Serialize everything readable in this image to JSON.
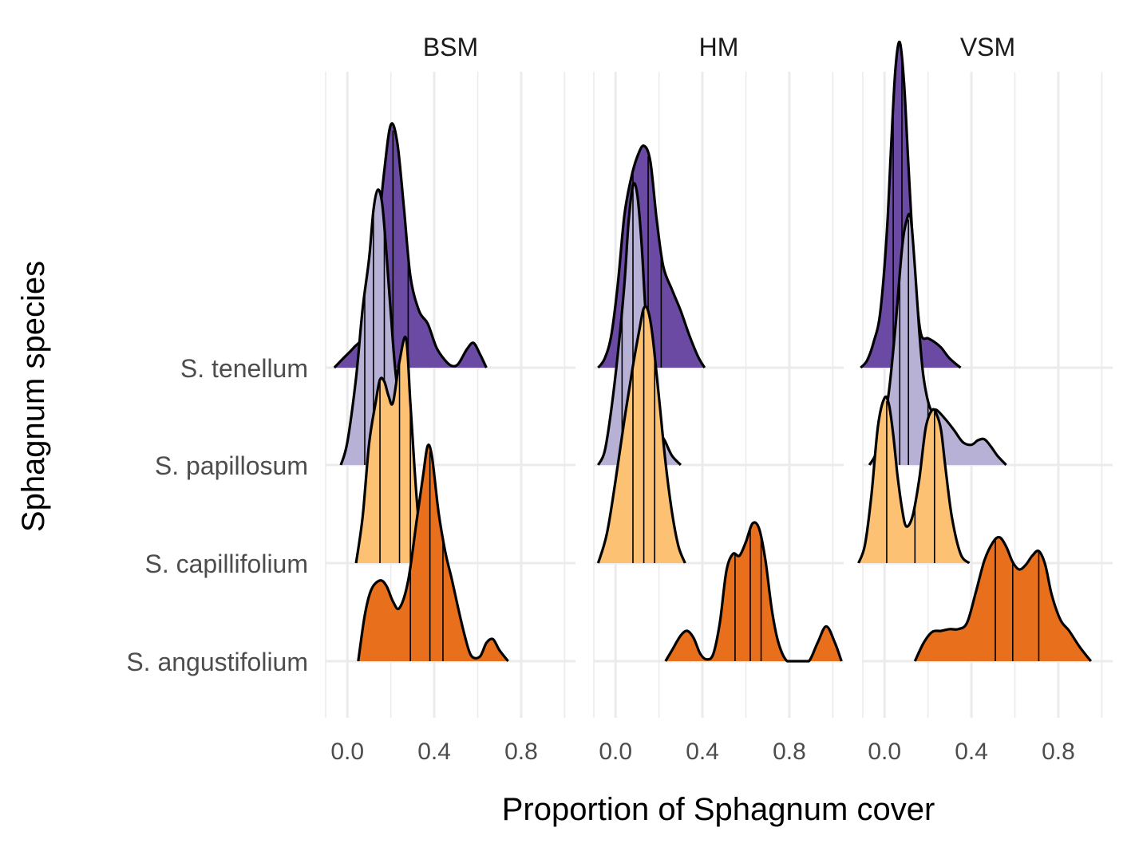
{
  "chart_data": {
    "type": "ridgeline",
    "xlabel": "Proportion of Sphagnum cover",
    "ylabel": "Sphagnum species",
    "xlim": [
      -0.1,
      1.05
    ],
    "xticks": [
      "0.0",
      "0.4",
      "0.8"
    ],
    "xtick_values": [
      0.0,
      0.4,
      0.8
    ],
    "grid": true,
    "quantile_lines": true,
    "colors": {
      "S. tenellum": "#6a4aa2",
      "S. papillosum": "#b8b1d6",
      "S. capillifolium": "#fdc173",
      "S. angustifolium": "#e8701c"
    },
    "species": [
      "S. tenellum",
      "S. papillosum",
      "S. capillifolium",
      "S. angustifolium"
    ],
    "panels": [
      {
        "facet": "BSM",
        "series": [
          {
            "name": "S. tenellum",
            "x": [
              -0.06,
              -0.02,
              0.03,
              0.08,
              0.11,
              0.14,
              0.17,
              0.2,
              0.23,
              0.26,
              0.29,
              0.33,
              0.37,
              0.41,
              0.45,
              0.48,
              0.51,
              0.55,
              0.58,
              0.61,
              0.64
            ],
            "y": [
              0.0,
              0.1,
              0.22,
              0.38,
              0.85,
              1.45,
              2.15,
              2.65,
              2.45,
              1.75,
              1.0,
              0.62,
              0.48,
              0.22,
              0.08,
              0.02,
              0.04,
              0.2,
              0.27,
              0.15,
              0.0
            ],
            "quantiles": [
              0.14,
              0.21,
              0.28
            ]
          },
          {
            "name": "S. papillosum",
            "x": [
              -0.03,
              0.0,
              0.04,
              0.07,
              0.1,
              0.12,
              0.14,
              0.16,
              0.18,
              0.2,
              0.22,
              0.25,
              0.28,
              0.3
            ],
            "y": [
              0.0,
              0.25,
              0.95,
              1.7,
              2.25,
              2.78,
              3.0,
              2.85,
              2.3,
              1.65,
              1.05,
              0.45,
              0.12,
              0.0
            ],
            "quantiles": [
              0.08,
              0.12,
              0.17
            ]
          },
          {
            "name": "S. capillifolium",
            "x": [
              0.04,
              0.07,
              0.1,
              0.13,
              0.15,
              0.17,
              0.19,
              0.21,
              0.24,
              0.27,
              0.29,
              0.31,
              0.33,
              0.35
            ],
            "y": [
              0.0,
              0.5,
              1.3,
              1.75,
              2.0,
              1.98,
              1.82,
              1.75,
              2.2,
              2.45,
              1.75,
              1.0,
              0.4,
              0.0
            ],
            "quantiles": [
              0.15,
              0.24,
              0.29
            ]
          },
          {
            "name": "S. angustifolium",
            "x": [
              0.05,
              0.08,
              0.11,
              0.15,
              0.18,
              0.21,
              0.24,
              0.28,
              0.32,
              0.35,
              0.37,
              0.39,
              0.42,
              0.45,
              0.48,
              0.51,
              0.54,
              0.57,
              0.61,
              0.64,
              0.67,
              0.7,
              0.74
            ],
            "y": [
              0.0,
              0.5,
              0.78,
              0.88,
              0.82,
              0.65,
              0.58,
              0.88,
              1.55,
              2.05,
              2.35,
              2.22,
              1.62,
              1.2,
              0.9,
              0.58,
              0.28,
              0.06,
              0.05,
              0.2,
              0.24,
              0.12,
              0.0
            ],
            "quantiles": [
              0.29,
              0.38,
              0.44
            ]
          }
        ]
      },
      {
        "facet": "HM",
        "series": [
          {
            "name": "S. tenellum",
            "x": [
              -0.08,
              -0.05,
              -0.02,
              0.01,
              0.04,
              0.07,
              0.1,
              0.13,
              0.16,
              0.19,
              0.22,
              0.26,
              0.3,
              0.34,
              0.38,
              0.41
            ],
            "y": [
              0.0,
              0.1,
              0.35,
              0.9,
              1.65,
              2.05,
              2.3,
              2.42,
              2.25,
              1.6,
              1.1,
              0.85,
              0.62,
              0.35,
              0.12,
              0.0
            ],
            "quantiles": [
              0.08,
              0.15,
              0.21
            ]
          },
          {
            "name": "S. papillosum",
            "x": [
              -0.08,
              -0.05,
              -0.02,
              0.01,
              0.04,
              0.06,
              0.08,
              0.1,
              0.12,
              0.14,
              0.17,
              0.2,
              0.23,
              0.26,
              0.3
            ],
            "y": [
              0.0,
              0.15,
              0.6,
              1.2,
              1.95,
              2.65,
              3.05,
              2.95,
              2.4,
              1.6,
              0.8,
              0.4,
              0.25,
              0.1,
              0.0
            ],
            "quantiles": [
              0.03,
              0.08,
              0.14
            ]
          },
          {
            "name": "S. capillifolium",
            "x": [
              -0.08,
              -0.04,
              0.0,
              0.04,
              0.08,
              0.11,
              0.13,
              0.15,
              0.17,
              0.2,
              0.23,
              0.26,
              0.29,
              0.32
            ],
            "y": [
              0.0,
              0.32,
              0.9,
              1.55,
              2.15,
              2.55,
              2.78,
              2.75,
              2.48,
              1.8,
              1.1,
              0.55,
              0.18,
              0.0
            ],
            "quantiles": [
              0.08,
              0.13,
              0.18
            ]
          },
          {
            "name": "S. angustifolium",
            "x": [
              0.23,
              0.26,
              0.3,
              0.33,
              0.36,
              0.39,
              0.42,
              0.45,
              0.48,
              0.51,
              0.54,
              0.57,
              0.6,
              0.63,
              0.66,
              0.69,
              0.72,
              0.75,
              0.79,
              0.85,
              0.89,
              0.93,
              0.97,
              1.01,
              1.04
            ],
            "y": [
              0.0,
              0.12,
              0.28,
              0.33,
              0.25,
              0.08,
              0.02,
              0.08,
              0.42,
              0.98,
              1.17,
              1.15,
              1.3,
              1.5,
              1.45,
              1.1,
              0.55,
              0.2,
              0.0,
              0.0,
              0.0,
              0.2,
              0.38,
              0.2,
              0.0
            ],
            "quantiles": [
              0.55,
              0.62,
              0.67
            ]
          }
        ]
      },
      {
        "facet": "VSM",
        "series": [
          {
            "name": "S. tenellum",
            "x": [
              -0.11,
              -0.08,
              -0.05,
              -0.02,
              0.01,
              0.03,
              0.05,
              0.07,
              0.09,
              0.11,
              0.13,
              0.15,
              0.17,
              0.2,
              0.23,
              0.26,
              0.3,
              0.35
            ],
            "y": [
              0.0,
              0.08,
              0.28,
              0.6,
              1.45,
              2.4,
              3.25,
              3.55,
              3.1,
              2.2,
              1.35,
              0.7,
              0.35,
              0.32,
              0.28,
              0.22,
              0.1,
              0.0
            ],
            "quantiles": [
              0.04,
              0.08,
              0.12
            ]
          },
          {
            "name": "S. papillosum",
            "x": [
              -0.07,
              -0.04,
              -0.01,
              0.02,
              0.05,
              0.08,
              0.1,
              0.12,
              0.14,
              0.16,
              0.18,
              0.21,
              0.24,
              0.28,
              0.32,
              0.36,
              0.4,
              0.43,
              0.46,
              0.49,
              0.52,
              0.56
            ],
            "y": [
              0.0,
              0.12,
              0.38,
              0.8,
              1.5,
              2.35,
              2.65,
              2.7,
              2.15,
              1.45,
              0.95,
              0.62,
              0.6,
              0.5,
              0.38,
              0.25,
              0.22,
              0.27,
              0.28,
              0.2,
              0.1,
              0.0
            ],
            "quantiles": [
              0.07,
              0.11,
              0.2
            ]
          },
          {
            "name": "S. capillifolium",
            "x": [
              -0.12,
              -0.09,
              -0.06,
              -0.03,
              0.0,
              0.02,
              0.04,
              0.06,
              0.08,
              0.1,
              0.13,
              0.16,
              0.19,
              0.22,
              0.24,
              0.26,
              0.28,
              0.31,
              0.35,
              0.39
            ],
            "y": [
              0.0,
              0.2,
              0.75,
              1.5,
              1.8,
              1.73,
              1.4,
              0.95,
              0.6,
              0.4,
              0.52,
              0.92,
              1.48,
              1.67,
              1.62,
              1.45,
              1.05,
              0.5,
              0.1,
              0.0
            ],
            "quantiles": [
              0.01,
              0.14,
              0.23
            ]
          },
          {
            "name": "S. angustifolium",
            "x": [
              0.14,
              0.18,
              0.22,
              0.26,
              0.3,
              0.34,
              0.38,
              0.42,
              0.46,
              0.5,
              0.53,
              0.56,
              0.59,
              0.62,
              0.65,
              0.68,
              0.71,
              0.74,
              0.77,
              0.81,
              0.85,
              0.9,
              0.95
            ],
            "y": [
              0.0,
              0.2,
              0.32,
              0.33,
              0.35,
              0.35,
              0.42,
              0.75,
              1.1,
              1.3,
              1.35,
              1.25,
              1.08,
              1.0,
              1.05,
              1.15,
              1.2,
              1.05,
              0.72,
              0.45,
              0.33,
              0.15,
              0.0
            ],
            "quantiles": [
              0.51,
              0.59,
              0.71
            ]
          }
        ]
      }
    ]
  }
}
